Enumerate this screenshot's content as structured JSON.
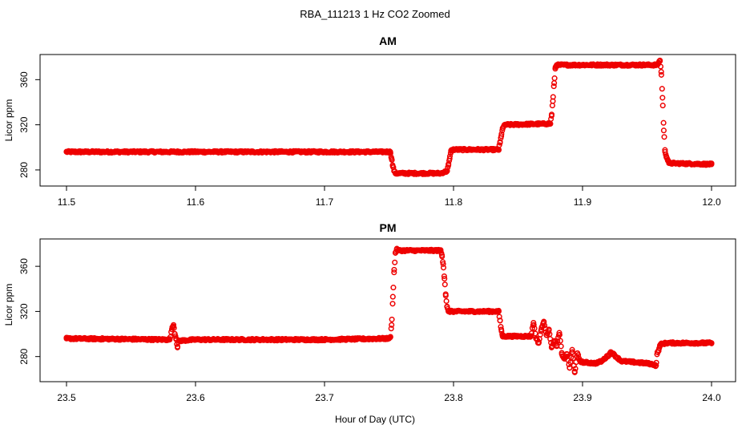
{
  "figure": {
    "title": "RBA_111213  1 Hz CO2 Zoomed",
    "xlabel": "Hour of Day (UTC)"
  },
  "chart_data": [
    {
      "type": "scatter",
      "title": "AM",
      "xlabel": "",
      "ylabel": "Licor ppm",
      "xlim": [
        11.5,
        12.0
      ],
      "ylim": [
        270,
        378
      ],
      "xticks": [
        "11.5",
        "11.6",
        "11.7",
        "11.8",
        "11.9",
        "12.0"
      ],
      "yticks": [
        "280",
        "320",
        "360"
      ],
      "marker_color": "#ee0000",
      "series": [
        {
          "x": [
            11.5,
            11.6,
            11.7,
            11.751,
            11.752,
            11.753,
            11.754,
            11.755,
            11.79,
            11.795,
            11.796,
            11.797,
            11.798,
            11.8,
            11.835,
            11.836,
            11.837,
            11.838,
            11.84,
            11.875,
            11.876,
            11.877,
            11.878,
            11.879,
            11.88,
            11.92,
            11.958,
            11.959,
            11.96,
            11.961,
            11.962,
            11.963,
            11.964,
            11.965,
            11.966,
            11.967,
            12.0
          ],
          "y": [
            296,
            296,
            296,
            296,
            290,
            283,
            279,
            277,
            277,
            279,
            284,
            290,
            297,
            298,
            298,
            304,
            310,
            317,
            320,
            321,
            328,
            341,
            357,
            371,
            373,
            373,
            373,
            375,
            377,
            367,
            344,
            315,
            296,
            292,
            289,
            286,
            285
          ]
        }
      ]
    },
    {
      "type": "scatter",
      "title": "PM",
      "xlabel": "",
      "ylabel": "Licor ppm",
      "xlim": [
        23.5,
        24.0
      ],
      "ylim": [
        262,
        380
      ],
      "xticks": [
        "23.5",
        "23.6",
        "23.7",
        "23.8",
        "23.9",
        "24.0"
      ],
      "yticks": [
        "280",
        "320",
        "360"
      ],
      "marker_color": "#ee0000",
      "series": [
        {
          "x": [
            23.5,
            23.58,
            23.582,
            23.583,
            23.584,
            23.585,
            23.586,
            23.587,
            23.6,
            23.7,
            23.75,
            23.751,
            23.752,
            23.753,
            23.754,
            23.755,
            23.756,
            23.757,
            23.76,
            23.79,
            23.791,
            23.792,
            23.793,
            23.794,
            23.795,
            23.796,
            23.8,
            23.835,
            23.836,
            23.837,
            23.838,
            23.84,
            23.86,
            23.862,
            23.864,
            23.866,
            23.868,
            23.87,
            23.872,
            23.874,
            23.876,
            23.878,
            23.88,
            23.882,
            23.884,
            23.886,
            23.888,
            23.89,
            23.892,
            23.894,
            23.896,
            23.898,
            23.9,
            23.91,
            23.915,
            23.92,
            23.922,
            23.93,
            23.95,
            23.955,
            23.957,
            23.958,
            23.959,
            23.96,
            23.961,
            23.965,
            24.0
          ],
          "y": [
            296,
            295,
            306,
            308,
            300,
            296,
            288,
            294,
            295,
            295,
            296,
            297,
            308,
            333,
            357,
            372,
            375,
            374,
            374,
            374,
            370,
            362,
            349,
            334,
            324,
            320,
            320,
            320,
            312,
            304,
            298,
            298,
            298,
            310,
            296,
            292,
            304,
            311,
            299,
            304,
            288,
            294,
            290,
            301,
            282,
            278,
            282,
            270,
            286,
            266,
            283,
            276,
            275,
            274,
            276,
            281,
            284,
            276,
            274,
            273,
            272,
            284,
            285,
            290,
            291,
            292,
            292
          ]
        }
      ]
    }
  ]
}
